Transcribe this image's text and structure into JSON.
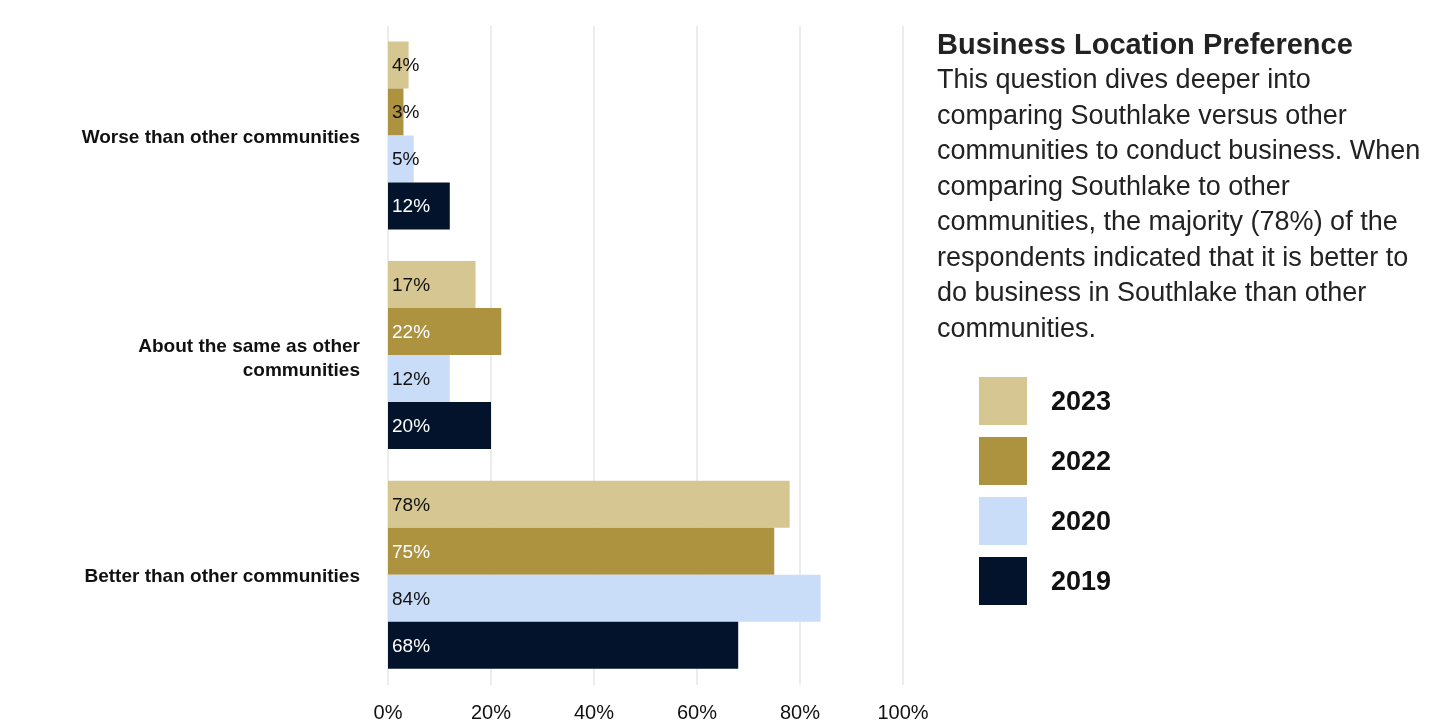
{
  "chart_data": {
    "type": "bar",
    "orientation": "horizontal",
    "title": "Business Location Preference",
    "subtitle": "This question dives deeper into comparing Southlake versus other communities to conduct business. When comparing Southlake to other communities, the majority (78%) of the respondents indicated that it is better to do business in Southlake than other communities.",
    "categories": [
      "Worse than other communities",
      "About the same as other communities",
      "Better than other communities"
    ],
    "series": [
      {
        "name": "2023",
        "color": "#d6c792",
        "values": [
          4,
          17,
          78
        ],
        "value_labels": [
          "4%",
          "17%",
          "78%"
        ]
      },
      {
        "name": "2022",
        "color": "#ad9240",
        "values": [
          3,
          22,
          75
        ],
        "value_labels": [
          "3%",
          "22%",
          "75%"
        ]
      },
      {
        "name": "2020",
        "color": "#c9dcf8",
        "values": [
          5,
          12,
          84
        ],
        "value_labels": [
          "5%",
          "12%",
          "84%"
        ]
      },
      {
        "name": "2019",
        "color": "#02132b",
        "values": [
          12,
          20,
          68
        ],
        "value_labels": [
          "12%",
          "20%",
          "68%"
        ]
      }
    ],
    "xlim": [
      0,
      100
    ],
    "xticks": [
      {
        "value": 0,
        "label": "0%"
      },
      {
        "value": 20,
        "label": "20%"
      },
      {
        "value": 40,
        "label": "40%"
      },
      {
        "value": 60,
        "label": "60%"
      },
      {
        "value": 80,
        "label": "80%"
      },
      {
        "value": 100,
        "label": "100%"
      }
    ],
    "grid": "x",
    "legend": "right"
  }
}
